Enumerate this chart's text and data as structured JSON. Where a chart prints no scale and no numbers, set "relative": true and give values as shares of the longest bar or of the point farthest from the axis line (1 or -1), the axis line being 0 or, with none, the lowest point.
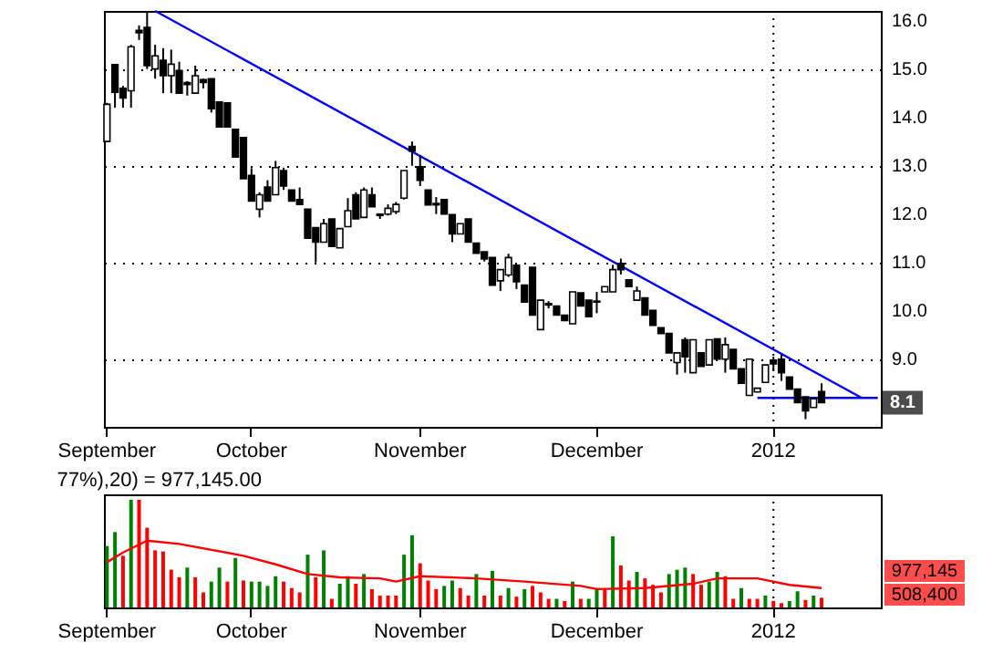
{
  "chart_data": [
    {
      "type": "candlestick",
      "categories": [
        "September",
        null,
        null,
        null,
        null,
        null,
        null,
        null,
        null,
        null,
        null,
        null,
        null,
        null,
        null,
        null,
        null,
        null,
        "October",
        null,
        null,
        null,
        null,
        null,
        null,
        null,
        null,
        null,
        null,
        null,
        null,
        null,
        null,
        null,
        null,
        null,
        null,
        null,
        null,
        "November",
        null,
        null,
        null,
        null,
        null,
        null,
        null,
        null,
        null,
        null,
        null,
        null,
        null,
        null,
        null,
        null,
        null,
        null,
        null,
        null,
        null,
        "December",
        null,
        null,
        null,
        null,
        null,
        null,
        null,
        null,
        null,
        null,
        null,
        null,
        null,
        null,
        null,
        null,
        null,
        null,
        null,
        null,
        null,
        "2012",
        null,
        null,
        null,
        null,
        null,
        null,
        null,
        null,
        null,
        null,
        null,
        null,
        null
      ],
      "ohlc": [
        [
          13.5,
          14.3,
          13.5,
          14.27
        ],
        [
          15.09,
          15.1,
          14.2,
          14.52
        ],
        [
          14.6,
          14.65,
          14.2,
          14.4
        ],
        [
          14.55,
          15.5,
          14.2,
          15.46
        ],
        [
          15.8,
          15.9,
          15.6,
          15.75
        ],
        [
          15.86,
          16.2,
          15.0,
          15.07
        ],
        [
          15.0,
          15.5,
          14.8,
          15.27
        ],
        [
          15.18,
          15.43,
          14.5,
          14.86
        ],
        [
          14.86,
          15.4,
          14.5,
          15.1
        ],
        [
          14.97,
          15.15,
          14.5,
          14.5
        ],
        [
          14.72,
          14.75,
          14.45,
          14.68
        ],
        [
          14.5,
          15.07,
          14.5,
          14.86
        ],
        [
          14.78,
          14.8,
          14.6,
          14.72
        ],
        [
          14.8,
          14.8,
          14.1,
          14.18
        ],
        [
          14.32,
          14.32,
          13.8,
          13.8
        ],
        [
          14.3,
          14.3,
          13.8,
          13.8
        ],
        [
          13.75,
          13.75,
          13.18,
          13.18
        ],
        [
          13.58,
          13.58,
          12.73,
          12.73
        ],
        [
          12.8,
          12.95,
          12.27,
          12.27
        ],
        [
          12.1,
          12.45,
          11.93,
          12.4
        ],
        [
          12.56,
          12.7,
          12.27,
          12.27
        ],
        [
          12.4,
          13.1,
          12.4,
          12.96
        ],
        [
          12.9,
          12.96,
          12.5,
          12.58
        ],
        [
          12.5,
          12.5,
          12.27,
          12.27
        ],
        [
          12.3,
          12.55,
          12.2,
          12.2
        ],
        [
          12.1,
          12.1,
          11.5,
          11.5
        ],
        [
          11.72,
          11.72,
          11.0,
          11.42
        ],
        [
          11.42,
          11.9,
          11.42,
          11.8
        ],
        [
          11.9,
          11.9,
          11.33,
          11.33
        ],
        [
          11.3,
          11.7,
          11.3,
          11.7
        ],
        [
          11.74,
          12.33,
          11.74,
          12.07
        ],
        [
          12.4,
          12.45,
          11.9,
          11.9
        ],
        [
          11.93,
          12.55,
          11.93,
          12.5
        ],
        [
          12.4,
          12.55,
          12.15,
          12.15
        ],
        [
          12.0,
          12.0,
          11.9,
          11.97
        ],
        [
          12.0,
          12.2,
          11.97,
          12.12
        ],
        [
          12.05,
          12.25,
          12.0,
          12.2
        ],
        [
          12.33,
          12.9,
          12.3,
          12.9
        ],
        [
          13.4,
          13.5,
          13.0,
          13.3
        ],
        [
          12.98,
          13.22,
          12.58,
          12.7
        ],
        [
          12.5,
          12.5,
          12.19,
          12.19
        ],
        [
          12.22,
          12.35,
          12.0,
          12.19
        ],
        [
          12.3,
          12.3,
          12.0,
          12.0
        ],
        [
          11.99,
          11.99,
          11.42,
          11.59
        ],
        [
          11.59,
          11.8,
          11.59,
          11.8
        ],
        [
          11.9,
          11.9,
          11.42,
          11.42
        ],
        [
          11.4,
          11.4,
          11.19,
          11.19
        ],
        [
          11.22,
          11.22,
          11.02,
          11.07
        ],
        [
          11.1,
          11.1,
          10.53,
          10.53
        ],
        [
          10.62,
          10.85,
          10.41,
          10.85
        ],
        [
          10.74,
          11.18,
          10.7,
          11.1
        ],
        [
          10.94,
          10.94,
          10.45,
          10.6
        ],
        [
          10.53,
          10.53,
          10.18,
          10.18
        ],
        [
          10.9,
          10.9,
          9.91,
          9.91
        ],
        [
          9.61,
          10.22,
          9.61,
          10.22
        ],
        [
          10.15,
          10.2,
          10.05,
          10.12
        ],
        [
          10.1,
          10.1,
          9.91,
          9.91
        ],
        [
          9.91,
          9.91,
          9.8,
          9.8
        ],
        [
          9.73,
          10.39,
          9.73,
          10.39
        ],
        [
          10.37,
          10.37,
          10.1,
          10.1
        ],
        [
          10.22,
          10.22,
          9.88,
          9.88
        ],
        [
          10.18,
          10.39,
          9.95,
          10.2
        ],
        [
          10.39,
          10.5,
          10.39,
          10.5
        ],
        [
          10.39,
          10.95,
          10.39,
          10.85
        ],
        [
          10.98,
          11.08,
          10.75,
          10.85
        ],
        [
          10.64,
          10.64,
          10.5,
          10.5
        ],
        [
          10.22,
          10.5,
          10.22,
          10.41
        ],
        [
          10.27,
          10.27,
          9.91,
          9.91
        ],
        [
          10.01,
          10.01,
          9.7,
          9.7
        ],
        [
          9.65,
          9.65,
          9.53,
          9.53
        ],
        [
          9.53,
          9.53,
          9.13,
          9.13
        ],
        [
          8.93,
          9.13,
          8.68,
          9.13
        ],
        [
          9.4,
          9.45,
          8.72,
          9.05
        ],
        [
          8.72,
          9.4,
          8.72,
          9.4
        ],
        [
          9.13,
          9.13,
          8.85,
          8.85
        ],
        [
          8.88,
          9.4,
          8.88,
          9.4
        ],
        [
          9.42,
          9.42,
          9.0,
          9.0
        ],
        [
          9.0,
          9.45,
          8.72,
          9.3
        ],
        [
          9.2,
          9.2,
          8.8,
          8.8
        ],
        [
          8.8,
          8.8,
          8.5,
          8.5
        ],
        [
          8.25,
          9.0,
          8.25,
          9.0
        ],
        [
          8.32,
          8.4,
          8.32,
          8.4
        ],
        [
          8.52,
          8.88,
          8.52,
          8.88
        ],
        [
          8.98,
          9.05,
          8.75,
          8.9
        ],
        [
          9.0,
          9.1,
          8.55,
          8.72
        ],
        [
          8.63,
          8.63,
          8.38,
          8.38
        ],
        [
          8.38,
          8.38,
          8.1,
          8.1
        ],
        [
          8.22,
          8.22,
          7.76,
          7.93
        ],
        [
          8.0,
          8.18,
          8.0,
          8.18
        ],
        [
          8.33,
          8.5,
          8.1,
          8.1
        ],
        null,
        null,
        null,
        null,
        null,
        null,
        null
      ],
      "series": [
        {
          "type": "line",
          "color": "#0000ff",
          "values": [
            null,
            null,
            null,
            null,
            null,
            null,
            16.2,
            null,
            null,
            null,
            null,
            null,
            null,
            null,
            null,
            null,
            null,
            null,
            null,
            null,
            null,
            null,
            null,
            null,
            null,
            null,
            null,
            null,
            null,
            null,
            null,
            null,
            null,
            null,
            null,
            null,
            null,
            null,
            null,
            null,
            null,
            null,
            null,
            null,
            null,
            null,
            null,
            null,
            null,
            null,
            null,
            null,
            null,
            null,
            null,
            null,
            null,
            null,
            null,
            null,
            null,
            null,
            null,
            null,
            null,
            null,
            null,
            null,
            null,
            null,
            null,
            null,
            null,
            null,
            null,
            null,
            null,
            null,
            null,
            null,
            null,
            null,
            null,
            null,
            null,
            null,
            null,
            null,
            null,
            null,
            null,
            null,
            null,
            null,
            8.2,
            null,
            null
          ]
        },
        {
          "type": "line",
          "color": "#0000ff",
          "values": [
            null,
            null,
            null,
            null,
            null,
            null,
            null,
            null,
            null,
            null,
            null,
            null,
            null,
            null,
            null,
            null,
            null,
            null,
            null,
            null,
            null,
            null,
            null,
            null,
            null,
            null,
            null,
            null,
            null,
            null,
            null,
            null,
            null,
            null,
            null,
            null,
            null,
            null,
            null,
            null,
            null,
            null,
            null,
            null,
            null,
            null,
            null,
            null,
            null,
            null,
            null,
            null,
            null,
            null,
            null,
            null,
            null,
            null,
            null,
            null,
            null,
            null,
            null,
            null,
            null,
            null,
            null,
            null,
            null,
            null,
            null,
            null,
            null,
            null,
            null,
            null,
            null,
            null,
            null,
            null,
            null,
            8.2,
            null,
            null,
            null,
            null,
            null,
            null,
            null,
            null,
            null,
            null,
            null,
            null,
            null,
            null,
            8.2
          ]
        }
      ],
      "ylim": [
        7.6,
        16.2
      ],
      "yticks": [
        {
          "value": 9,
          "label": "9.0"
        },
        {
          "value": 10,
          "label": "10.0"
        },
        {
          "value": 11,
          "label": "11.0"
        },
        {
          "value": 12,
          "label": "12.0"
        },
        {
          "value": 13,
          "label": "13.0"
        },
        {
          "value": 14,
          "label": "14.0"
        },
        {
          "value": 15,
          "label": "15.0"
        },
        {
          "value": 16,
          "label": "16.0"
        }
      ],
      "grid": "y",
      "ref_lines": [
        {
          "axis": "x",
          "value": "2012",
          "color": "#000000",
          "line_style": "dotted"
        }
      ],
      "annotations": [
        "8.1"
      ]
    },
    {
      "type": "bar",
      "relative": true,
      "title": "77%),20) = 977,145.00",
      "categories": [
        "September",
        null,
        null,
        null,
        null,
        null,
        null,
        null,
        null,
        null,
        null,
        null,
        null,
        null,
        null,
        null,
        null,
        null,
        "October",
        null,
        null,
        null,
        null,
        null,
        null,
        null,
        null,
        null,
        null,
        null,
        null,
        null,
        null,
        null,
        null,
        null,
        null,
        null,
        null,
        "November",
        null,
        null,
        null,
        null,
        null,
        null,
        null,
        null,
        null,
        null,
        null,
        null,
        null,
        null,
        null,
        null,
        null,
        null,
        null,
        null,
        null,
        "December",
        null,
        null,
        null,
        null,
        null,
        null,
        null,
        null,
        null,
        null,
        null,
        null,
        null,
        null,
        null,
        null,
        null,
        null,
        null,
        null,
        null,
        "2012",
        null,
        null,
        null,
        null,
        null,
        null,
        null,
        null,
        null,
        null,
        null,
        null,
        null
      ],
      "series": [
        {
          "type": "bar",
          "values": [
            0.57,
            0.7,
            0.48,
            1.0,
            1.0,
            0.74,
            0.53,
            0.52,
            0.35,
            0.28,
            0.37,
            0.28,
            0.14,
            0.24,
            0.37,
            0.24,
            0.46,
            0.25,
            0.24,
            0.24,
            0.2,
            0.29,
            0.24,
            0.18,
            0.14,
            0.49,
            0.28,
            0.53,
            0.08,
            0.22,
            0.29,
            0.22,
            0.31,
            0.17,
            0.11,
            0.11,
            0.11,
            0.49,
            0.67,
            0.41,
            0.25,
            0.17,
            0.2,
            0.25,
            0.18,
            0.11,
            0.31,
            0.11,
            0.34,
            0.11,
            0.18,
            0.1,
            0.17,
            0.2,
            0.14,
            0.08,
            0.08,
            0.06,
            0.24,
            0.08,
            0.08,
            0.18,
            0.17,
            0.66,
            0.39,
            0.25,
            0.33,
            0.27,
            0.21,
            0.14,
            0.31,
            0.35,
            0.37,
            0.31,
            0.21,
            0.24,
            0.33,
            0.29,
            0.08,
            0.18,
            0.08,
            0.08,
            0.11,
            0.06,
            0.04,
            0.06,
            0.15,
            0.07,
            0.11,
            0.09,
            null,
            null,
            null,
            null,
            null,
            null,
            null
          ],
          "colors": [
            "#008000",
            "#008000",
            "#ff0000",
            "#008000",
            "#ff0000",
            "#ff0000",
            "#ff0000",
            "#ff0000",
            "#ff0000",
            "#ff0000",
            "#008000",
            "#ff0000",
            "#ff0000",
            "#008000",
            "#008000",
            "#ff0000",
            "#008000",
            "#ff0000",
            "#008000",
            "#008000",
            "#008000",
            "#008000",
            "#ff0000",
            "#ff0000",
            "#ff0000",
            "#008000",
            "#ff0000",
            "#008000",
            "#ff0000",
            "#008000",
            "#008000",
            "#ff0000",
            "#008000",
            "#ff0000",
            "#ff0000",
            "#ff0000",
            "#ff0000",
            "#008000",
            "#008000",
            "#ff0000",
            "#ff0000",
            "#ff0000",
            "#008000",
            "#008000",
            "#ff0000",
            "#ff0000",
            "#008000",
            "#ff0000",
            "#008000",
            "#ff0000",
            "#008000",
            "#ff0000",
            "#008000",
            "#ff0000",
            "#ff0000",
            "#ff0000",
            "#008000",
            "#ff0000",
            "#008000",
            "#ff0000",
            "#008000",
            "#008000",
            "#ff0000",
            "#008000",
            "#ff0000",
            "#ff0000",
            "#008000",
            "#ff0000",
            "#ff0000",
            "#ff0000",
            "#008000",
            "#008000",
            "#008000",
            "#ff0000",
            "#ff0000",
            "#008000",
            "#008000",
            "#ff0000",
            "#ff0000",
            "#008000",
            "#ff0000",
            "#ff0000",
            "#008000",
            "#ff0000",
            "#ff0000",
            "#008000",
            "#008000",
            "#ff0000",
            "#008000",
            "#ff0000",
            null,
            null,
            null,
            null,
            null,
            null,
            null
          ]
        },
        {
          "type": "line",
          "color": "#ff0000",
          "values": [
            0.42,
            null,
            0.51,
            null,
            null,
            0.62,
            null,
            null,
            null,
            0.59,
            null,
            null,
            null,
            null,
            null,
            null,
            null,
            0.48,
            null,
            null,
            null,
            0.4,
            null,
            null,
            null,
            0.31,
            null,
            null,
            null,
            0.28,
            null,
            null,
            null,
            null,
            0.27,
            null,
            0.24,
            null,
            null,
            0.29,
            null,
            null,
            null,
            null,
            null,
            null,
            0.27,
            null,
            null,
            null,
            null,
            null,
            0.24,
            null,
            null,
            null,
            null,
            null,
            null,
            0.2,
            null,
            0.17,
            null,
            null,
            null,
            null,
            null,
            0.18,
            null,
            null,
            null,
            null,
            null,
            0.22,
            null,
            null,
            0.27,
            null,
            null,
            null,
            null,
            0.27,
            null,
            null,
            null,
            0.21,
            null,
            null,
            null,
            0.18,
            null,
            null,
            null,
            null,
            null,
            null,
            null
          ]
        }
      ],
      "ref_lines": [
        {
          "axis": "x",
          "value": "2012",
          "color": "#000000",
          "line_style": "dotted"
        }
      ],
      "annotations": [
        "977,145",
        "508,400"
      ]
    }
  ]
}
